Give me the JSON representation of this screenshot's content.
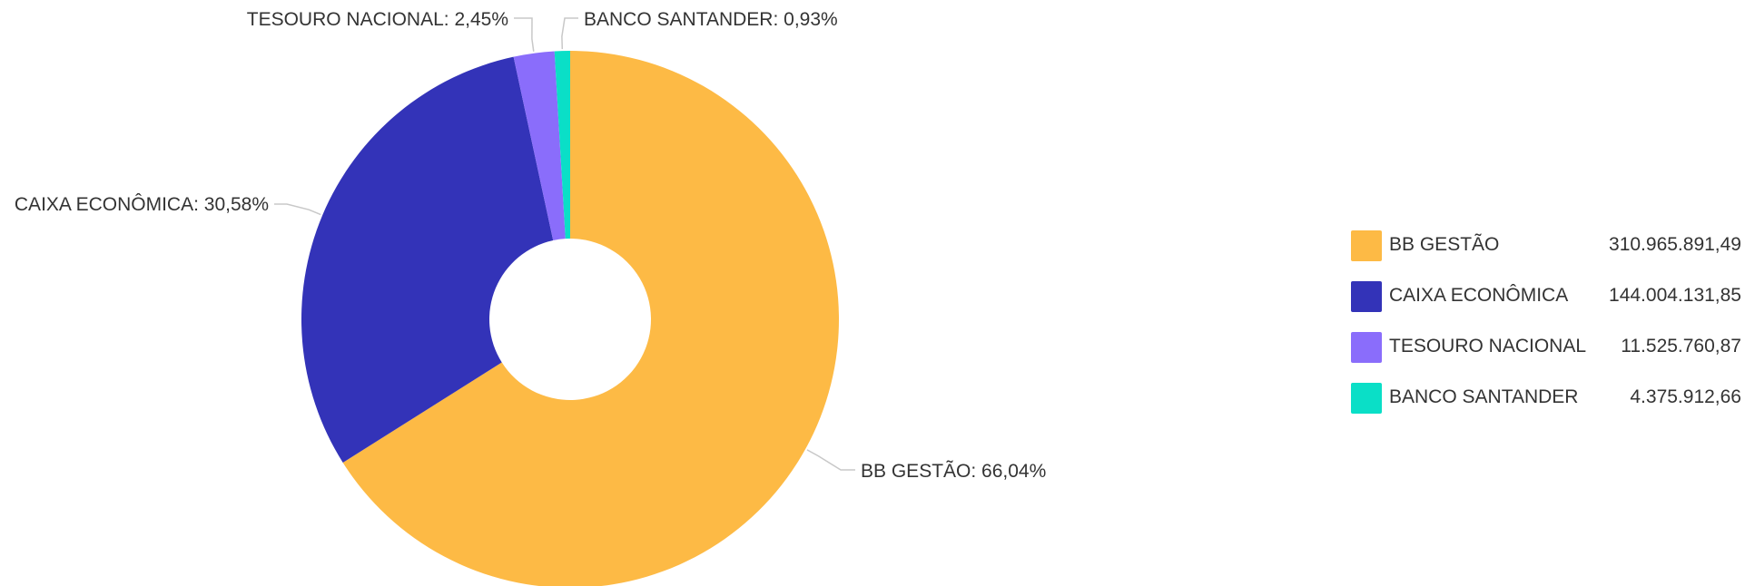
{
  "chart_data": {
    "type": "pie",
    "style": "donut",
    "slices": [
      {
        "name": "BB GESTÃO",
        "percent": 66.04,
        "label": "BB GESTÃO: 66,04%",
        "value": 310965891.49,
        "value_text": "310.965.891,49",
        "color": "#FDBA45"
      },
      {
        "name": "CAIXA ECONÔMICA",
        "percent": 30.58,
        "label": "CAIXA ECONÔMICA: 30,58%",
        "value": 144004131.85,
        "value_text": "144.004.131,85",
        "color": "#3333B8"
      },
      {
        "name": "TESOURO NACIONAL",
        "percent": 2.45,
        "label": "TESOURO NACIONAL: 2,45%",
        "value": 11525760.87,
        "value_text": "11.525.760,87",
        "color": "#8A6DFB"
      },
      {
        "name": "BANCO SANTANDER",
        "percent": 0.93,
        "label": "BANCO SANTANDER: 0,93%",
        "value": 4375912.66,
        "value_text": "4.375.912,66",
        "color": "#0ADFC7"
      }
    ],
    "legend_position": "right"
  }
}
